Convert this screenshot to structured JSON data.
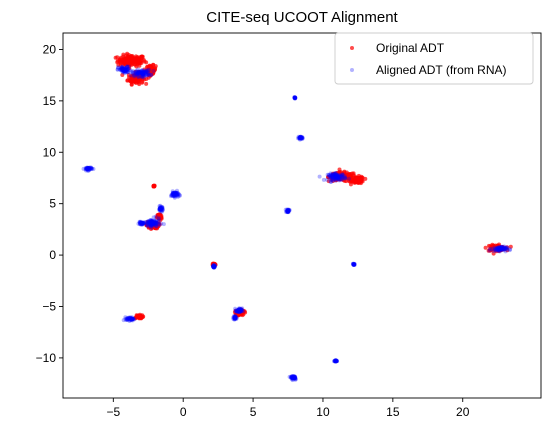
{
  "chart_data": {
    "type": "scatter",
    "title": "CITE-seq UCOOT Alignment",
    "xlabel": "",
    "ylabel": "",
    "xlim": [
      -8.6,
      25.6
    ],
    "ylim": [
      -13.9,
      21.6
    ],
    "xticks": [
      -5,
      0,
      5,
      10,
      15,
      20
    ],
    "yticks": [
      -10,
      -5,
      0,
      5,
      10,
      15,
      20
    ],
    "grid": false,
    "legend_position": "top-right",
    "series": [
      {
        "name": "Original ADT",
        "color": "#ff0000",
        "clusters": [
          {
            "center": [
              -3.7,
              18.9
            ],
            "spread": [
              0.9,
              0.5
            ]
          },
          {
            "center": [
              -3.4,
              17.2
            ],
            "spread": [
              0.5,
              0.5
            ]
          },
          {
            "center": [
              -2.3,
              18.0
            ],
            "spread": [
              0.3,
              0.4
            ]
          },
          {
            "center": [
              11.4,
              7.6
            ],
            "spread": [
              0.9,
              0.4
            ]
          },
          {
            "center": [
              12.5,
              7.3
            ],
            "spread": [
              0.4,
              0.3
            ]
          },
          {
            "center": [
              22.4,
              0.7
            ],
            "spread": [
              0.6,
              0.25
            ]
          },
          {
            "center": [
              -2.1,
              6.7
            ],
            "spread": [
              0.05,
              0.05
            ]
          },
          {
            "center": [
              -1.7,
              3.7
            ],
            "spread": [
              0.15,
              0.3
            ]
          },
          {
            "center": [
              2.2,
              -0.9
            ],
            "spread": [
              0.1,
              0.1
            ]
          },
          {
            "center": [
              4.1,
              -5.6
            ],
            "spread": [
              0.25,
              0.3
            ]
          },
          {
            "center": [
              -3.2,
              -6.0
            ],
            "spread": [
              0.3,
              0.15
            ]
          },
          {
            "center": [
              -2.2,
              2.9
            ],
            "spread": [
              0.4,
              0.3
            ]
          }
        ]
      },
      {
        "name": "Aligned ADT (from RNA)",
        "color": "#0000ff",
        "clusters": [
          {
            "center": [
              -4.2,
              18.0
            ],
            "spread": [
              0.4,
              0.3
            ]
          },
          {
            "center": [
              -3.0,
              17.7
            ],
            "spread": [
              0.6,
              0.3
            ]
          },
          {
            "center": [
              8.0,
              15.3
            ],
            "spread": [
              0.05,
              0.05
            ]
          },
          {
            "center": [
              8.4,
              11.4
            ],
            "spread": [
              0.15,
              0.12
            ]
          },
          {
            "center": [
              11.0,
              7.6
            ],
            "spread": [
              0.6,
              0.3
            ]
          },
          {
            "center": [
              -6.8,
              8.4
            ],
            "spread": [
              0.25,
              0.15
            ]
          },
          {
            "center": [
              -0.6,
              5.9
            ],
            "spread": [
              0.25,
              0.25
            ]
          },
          {
            "center": [
              -1.6,
              4.5
            ],
            "spread": [
              0.15,
              0.2
            ]
          },
          {
            "center": [
              -2.2,
              3.1
            ],
            "spread": [
              0.5,
              0.4
            ]
          },
          {
            "center": [
              -3.0,
              3.1
            ],
            "spread": [
              0.15,
              0.1
            ]
          },
          {
            "center": [
              7.5,
              4.3
            ],
            "spread": [
              0.1,
              0.15
            ]
          },
          {
            "center": [
              12.2,
              -0.9
            ],
            "spread": [
              0.06,
              0.06
            ]
          },
          {
            "center": [
              2.2,
              -1.1
            ],
            "spread": [
              0.08,
              0.15
            ]
          },
          {
            "center": [
              22.6,
              0.6
            ],
            "spread": [
              0.5,
              0.2
            ]
          },
          {
            "center": [
              4.0,
              -5.4
            ],
            "spread": [
              0.2,
              0.2
            ]
          },
          {
            "center": [
              3.7,
              -6.1
            ],
            "spread": [
              0.12,
              0.15
            ]
          },
          {
            "center": [
              -3.8,
              -6.2
            ],
            "spread": [
              0.25,
              0.15
            ]
          },
          {
            "center": [
              10.9,
              -10.3
            ],
            "spread": [
              0.1,
              0.08
            ]
          },
          {
            "center": [
              7.9,
              -11.9
            ],
            "spread": [
              0.2,
              0.2
            ]
          }
        ]
      }
    ]
  }
}
